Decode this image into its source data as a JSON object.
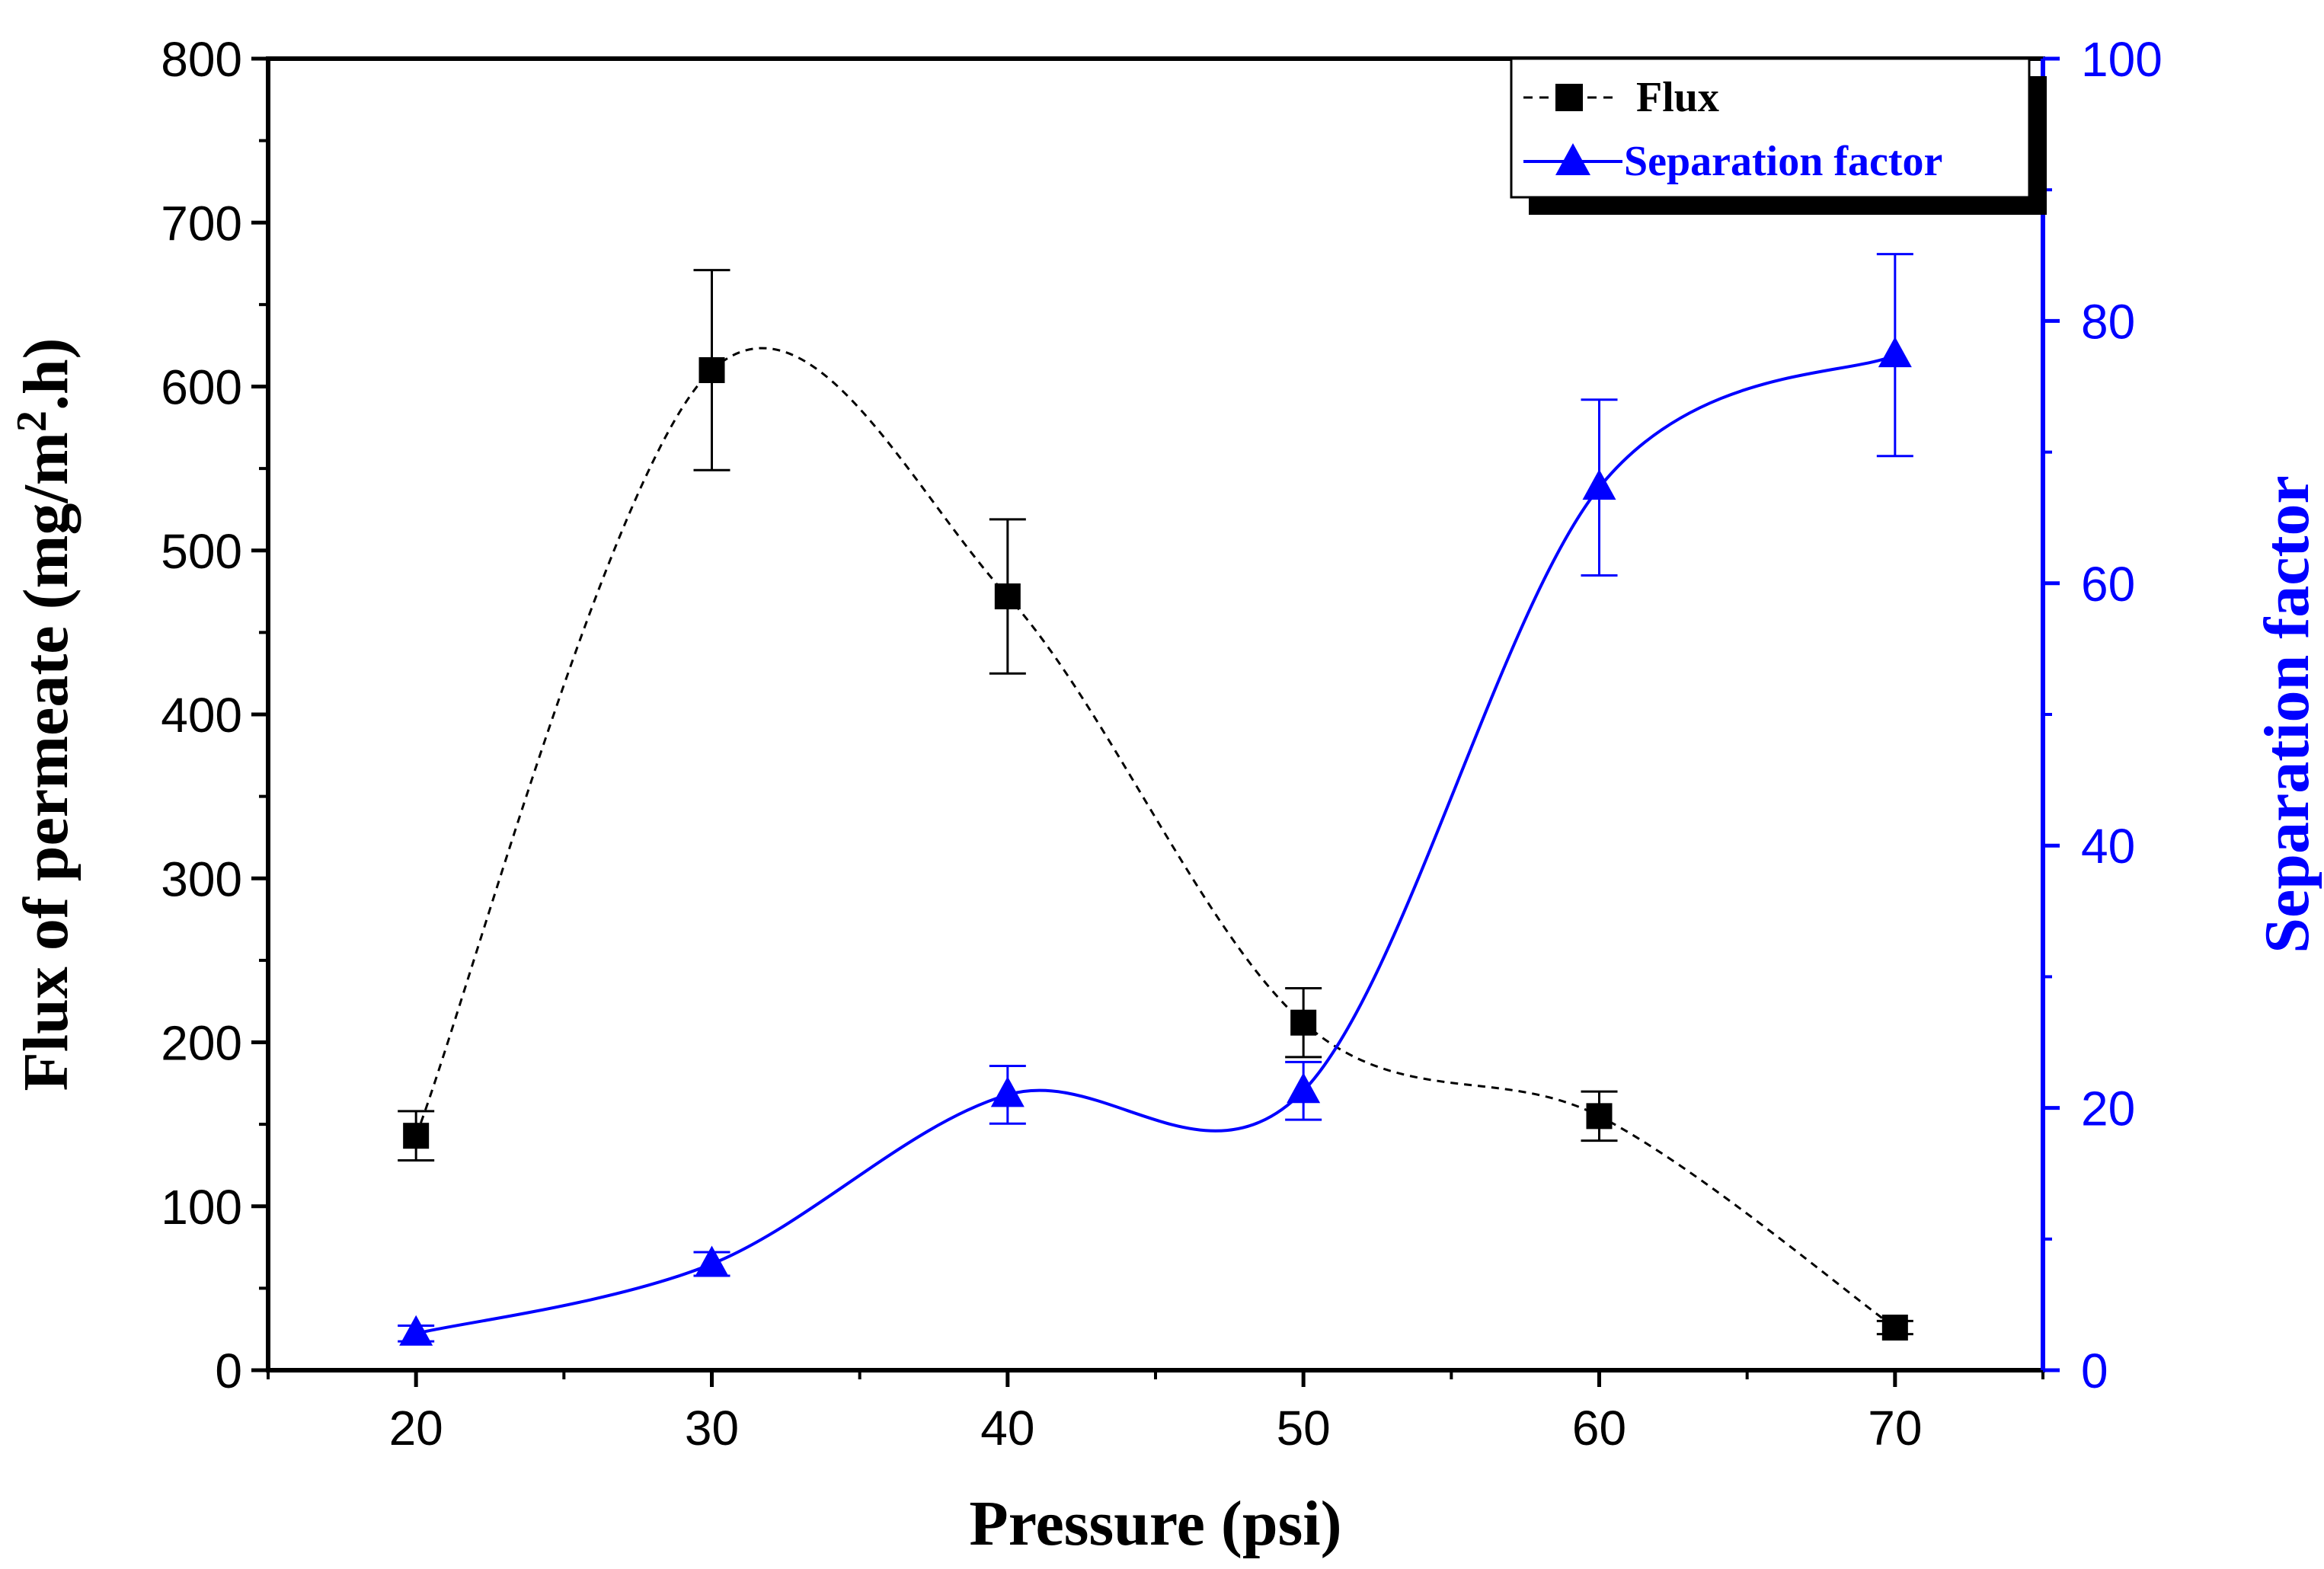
{
  "chart_data": {
    "type": "line",
    "x": [
      20,
      30,
      40,
      50,
      60,
      70
    ],
    "xlim": [
      15,
      75
    ],
    "xticks": [
      20,
      30,
      40,
      50,
      60,
      70
    ],
    "xlabel": "Pressure (psi)",
    "ylabel_left": "Flux of permeate (mg/m",
    "ylabel_left_sup": "2",
    "ylabel_left_tail": ".h)",
    "ylim_left": [
      0,
      800
    ],
    "yticks_left": [
      0,
      100,
      200,
      300,
      400,
      500,
      600,
      700,
      800
    ],
    "ylabel_right": "Separation factor",
    "ylim_right": [
      0,
      100
    ],
    "yticks_right": [
      0,
      20,
      40,
      60,
      80,
      100
    ],
    "grid": false,
    "legend_position": "top-right",
    "series": [
      {
        "name": "Flux",
        "axis": "left",
        "marker": "square",
        "line_style": "dashed",
        "color": "#000000",
        "values": [
          143,
          610,
          472,
          212,
          155,
          26
        ],
        "error": [
          15,
          61,
          47,
          21,
          15,
          4
        ]
      },
      {
        "name": "Separation factor",
        "axis": "right",
        "marker": "triangle",
        "line_style": "solid",
        "color": "#0000ff",
        "values": [
          2.8,
          8.1,
          21.0,
          21.3,
          67.3,
          77.4
        ],
        "error": [
          0.6,
          0.9,
          2.2,
          2.2,
          6.7,
          7.7
        ]
      }
    ]
  }
}
